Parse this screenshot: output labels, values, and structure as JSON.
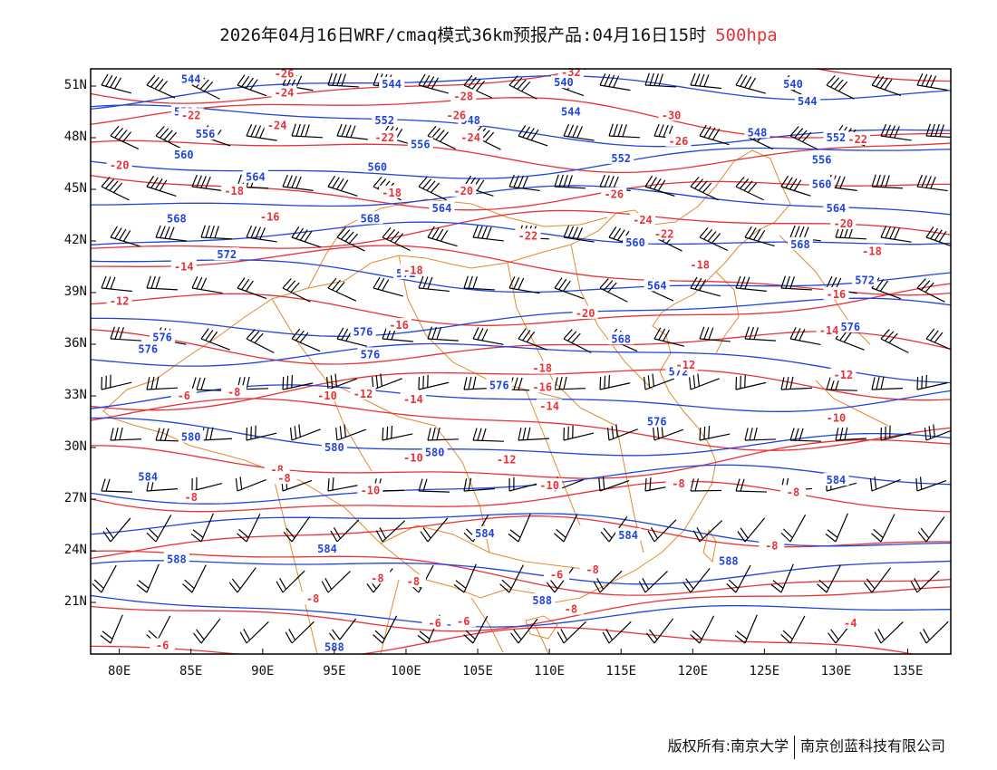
{
  "title": {
    "text": "2026年04月16日WRF/cmaq模式36km预报产品:04月16日15时",
    "level": "500hpa",
    "level_color": "#e8323a"
  },
  "axes": {
    "lat_labels": [
      "51N",
      "48N",
      "45N",
      "42N",
      "39N",
      "36N",
      "33N",
      "30N",
      "27N",
      "24N",
      "21N"
    ],
    "lat_values": [
      51,
      48,
      45,
      42,
      39,
      36,
      33,
      30,
      27,
      24,
      21
    ],
    "lon_labels": [
      "80E",
      "85E",
      "90E",
      "95E",
      "100E",
      "105E",
      "110E",
      "115E",
      "120E",
      "125E",
      "130E",
      "135E"
    ],
    "lon_values": [
      80,
      85,
      90,
      95,
      100,
      105,
      110,
      115,
      120,
      125,
      130,
      135
    ],
    "lon_range": [
      78,
      138
    ],
    "lat_range": [
      18,
      52
    ]
  },
  "colors": {
    "height_contour": "#2244dd",
    "temperature_contour": "#e8323a",
    "boundary": "#e08a30",
    "wind_barb": "#000000"
  },
  "height_labels": [
    {
      "text": "544",
      "lon": 85,
      "lat": 51.4
    },
    {
      "text": "544",
      "lon": 99,
      "lat": 51.1
    },
    {
      "text": "540",
      "lon": 111,
      "lat": 51.2
    },
    {
      "text": "540",
      "lon": 127,
      "lat": 51.1
    },
    {
      "text": "544",
      "lon": 128,
      "lat": 50.1
    },
    {
      "text": "544",
      "lon": 111.5,
      "lat": 49.5
    },
    {
      "text": "548",
      "lon": 104.5,
      "lat": 49.0
    },
    {
      "text": "548",
      "lon": 124.5,
      "lat": 48.3
    },
    {
      "text": "552",
      "lon": 84.5,
      "lat": 49.5
    },
    {
      "text": "552",
      "lon": 98.5,
      "lat": 49.0
    },
    {
      "text": "552",
      "lon": 115,
      "lat": 46.8
    },
    {
      "text": "552",
      "lon": 130,
      "lat": 48.0
    },
    {
      "text": "556",
      "lon": 86,
      "lat": 48.2
    },
    {
      "text": "556",
      "lon": 101,
      "lat": 47.6
    },
    {
      "text": "556",
      "lon": 129,
      "lat": 46.7
    },
    {
      "text": "560",
      "lon": 84.5,
      "lat": 47.0
    },
    {
      "text": "560",
      "lon": 98,
      "lat": 46.3
    },
    {
      "text": "560",
      "lon": 129,
      "lat": 45.3
    },
    {
      "text": "560",
      "lon": 116,
      "lat": 41.9
    },
    {
      "text": "564",
      "lon": 89.5,
      "lat": 45.7
    },
    {
      "text": "564",
      "lon": 102.5,
      "lat": 43.9
    },
    {
      "text": "564",
      "lon": 130,
      "lat": 43.9
    },
    {
      "text": "564",
      "lon": 117.5,
      "lat": 39.4
    },
    {
      "text": "568",
      "lon": 84,
      "lat": 43.3
    },
    {
      "text": "568",
      "lon": 97.5,
      "lat": 43.3
    },
    {
      "text": "568",
      "lon": 127.5,
      "lat": 41.8
    },
    {
      "text": "568",
      "lon": 115,
      "lat": 36.3
    },
    {
      "text": "572",
      "lon": 87.5,
      "lat": 41.2
    },
    {
      "text": "572",
      "lon": 132,
      "lat": 39.7
    },
    {
      "text": "572",
      "lon": 100,
      "lat": 40.1
    },
    {
      "text": "572",
      "lon": 119,
      "lat": 34.4
    },
    {
      "text": "576",
      "lon": 83,
      "lat": 36.4
    },
    {
      "text": "576",
      "lon": 82,
      "lat": 35.7
    },
    {
      "text": "576",
      "lon": 97,
      "lat": 36.7
    },
    {
      "text": "576",
      "lon": 97.5,
      "lat": 35.4
    },
    {
      "text": "576",
      "lon": 106.5,
      "lat": 33.6
    },
    {
      "text": "576",
      "lon": 131,
      "lat": 37.0
    },
    {
      "text": "576",
      "lon": 117.5,
      "lat": 31.5
    },
    {
      "text": "580",
      "lon": 85,
      "lat": 30.6
    },
    {
      "text": "580",
      "lon": 95,
      "lat": 30.0
    },
    {
      "text": "580",
      "lon": 102,
      "lat": 29.7
    },
    {
      "text": "584",
      "lon": 82,
      "lat": 28.3
    },
    {
      "text": "584",
      "lon": 94.5,
      "lat": 24.1
    },
    {
      "text": "584",
      "lon": 105.5,
      "lat": 25.0
    },
    {
      "text": "584",
      "lon": 115.5,
      "lat": 24.9
    },
    {
      "text": "584",
      "lon": 130,
      "lat": 28.1
    },
    {
      "text": "588",
      "lon": 84,
      "lat": 23.5
    },
    {
      "text": "588",
      "lon": 109.5,
      "lat": 21.1
    },
    {
      "text": "588",
      "lon": 122.5,
      "lat": 23.4
    },
    {
      "text": "588",
      "lon": 95,
      "lat": 18.4
    }
  ],
  "temperature_labels": [
    {
      "text": "-26",
      "lon": 91.5,
      "lat": 51.7
    },
    {
      "text": "-32",
      "lon": 111.5,
      "lat": 51.8
    },
    {
      "text": "-24",
      "lon": 91.5,
      "lat": 50.6
    },
    {
      "text": "-28",
      "lon": 104,
      "lat": 50.4
    },
    {
      "text": "-22",
      "lon": 85,
      "lat": 49.3
    },
    {
      "text": "-24",
      "lon": 91,
      "lat": 48.7
    },
    {
      "text": "-26",
      "lon": 103.5,
      "lat": 49.3
    },
    {
      "text": "-30",
      "lon": 118.5,
      "lat": 49.3
    },
    {
      "text": "-22",
      "lon": 98.5,
      "lat": 48.0
    },
    {
      "text": "-24",
      "lon": 104.5,
      "lat": 48.0
    },
    {
      "text": "-26",
      "lon": 119,
      "lat": 47.8
    },
    {
      "text": "-22",
      "lon": 131.5,
      "lat": 47.9
    },
    {
      "text": "-20",
      "lon": 80,
      "lat": 46.4
    },
    {
      "text": "-18",
      "lon": 88,
      "lat": 44.9
    },
    {
      "text": "-18",
      "lon": 99,
      "lat": 44.8
    },
    {
      "text": "-20",
      "lon": 104,
      "lat": 44.9
    },
    {
      "text": "-26",
      "lon": 114.5,
      "lat": 44.7
    },
    {
      "text": "-16",
      "lon": 90.5,
      "lat": 43.4
    },
    {
      "text": "-24",
      "lon": 116.5,
      "lat": 43.2
    },
    {
      "text": "-20",
      "lon": 130.5,
      "lat": 43.0
    },
    {
      "text": "-22",
      "lon": 108.5,
      "lat": 42.3
    },
    {
      "text": "-22",
      "lon": 118,
      "lat": 42.4
    },
    {
      "text": "-14",
      "lon": 84.5,
      "lat": 40.5
    },
    {
      "text": "-18",
      "lon": 100.5,
      "lat": 40.3
    },
    {
      "text": "-18",
      "lon": 120.5,
      "lat": 40.6
    },
    {
      "text": "-18",
      "lon": 132.5,
      "lat": 41.4
    },
    {
      "text": "-12",
      "lon": 80,
      "lat": 38.5
    },
    {
      "text": "-16",
      "lon": 130,
      "lat": 38.9
    },
    {
      "text": "-20",
      "lon": 112.5,
      "lat": 37.8
    },
    {
      "text": "-16",
      "lon": 99.5,
      "lat": 37.1
    },
    {
      "text": "-14",
      "lon": 129.5,
      "lat": 36.8
    },
    {
      "text": "-18",
      "lon": 109.5,
      "lat": 34.6
    },
    {
      "text": "-12",
      "lon": 119.5,
      "lat": 34.8
    },
    {
      "text": "-12",
      "lon": 130.5,
      "lat": 34.2
    },
    {
      "text": "-16",
      "lon": 109.5,
      "lat": 33.5
    },
    {
      "text": "-8",
      "lon": 88,
      "lat": 33.2
    },
    {
      "text": "-10",
      "lon": 94.5,
      "lat": 33.0
    },
    {
      "text": "-12",
      "lon": 97,
      "lat": 33.1
    },
    {
      "text": "-14",
      "lon": 100.5,
      "lat": 32.8
    },
    {
      "text": "-14",
      "lon": 110,
      "lat": 32.4
    },
    {
      "text": "-10",
      "lon": 130,
      "lat": 31.7
    },
    {
      "text": "-6",
      "lon": 84.5,
      "lat": 33.0
    },
    {
      "text": "-10",
      "lon": 100.5,
      "lat": 29.4
    },
    {
      "text": "-12",
      "lon": 107,
      "lat": 29.3
    },
    {
      "text": "-8",
      "lon": 91,
      "lat": 28.7
    },
    {
      "text": "-8",
      "lon": 91.5,
      "lat": 28.2
    },
    {
      "text": "-10",
      "lon": 97.5,
      "lat": 27.5
    },
    {
      "text": "-10",
      "lon": 110,
      "lat": 27.8
    },
    {
      "text": "-8",
      "lon": 119,
      "lat": 27.9
    },
    {
      "text": "-8",
      "lon": 127,
      "lat": 27.4
    },
    {
      "text": "-8",
      "lon": 85,
      "lat": 27.1
    },
    {
      "text": "-8",
      "lon": 125.5,
      "lat": 24.3
    },
    {
      "text": "-8",
      "lon": 98,
      "lat": 22.4
    },
    {
      "text": "-8",
      "lon": 100.5,
      "lat": 22.2
    },
    {
      "text": "-8",
      "lon": 113,
      "lat": 22.9
    },
    {
      "text": "-6",
      "lon": 110.5,
      "lat": 22.6
    },
    {
      "text": "-8",
      "lon": 93.5,
      "lat": 21.2
    },
    {
      "text": "-8",
      "lon": 111.5,
      "lat": 20.6
    },
    {
      "text": "-6",
      "lon": 102,
      "lat": 19.8
    },
    {
      "text": "-6",
      "lon": 104,
      "lat": 19.9
    },
    {
      "text": "-4",
      "lon": 131,
      "lat": 19.8
    },
    {
      "text": "-6",
      "lon": 83,
      "lat": 18.5
    }
  ],
  "footer": {
    "left": "版权所有:南京大学",
    "right": "南京创蓝科技有限公司"
  }
}
